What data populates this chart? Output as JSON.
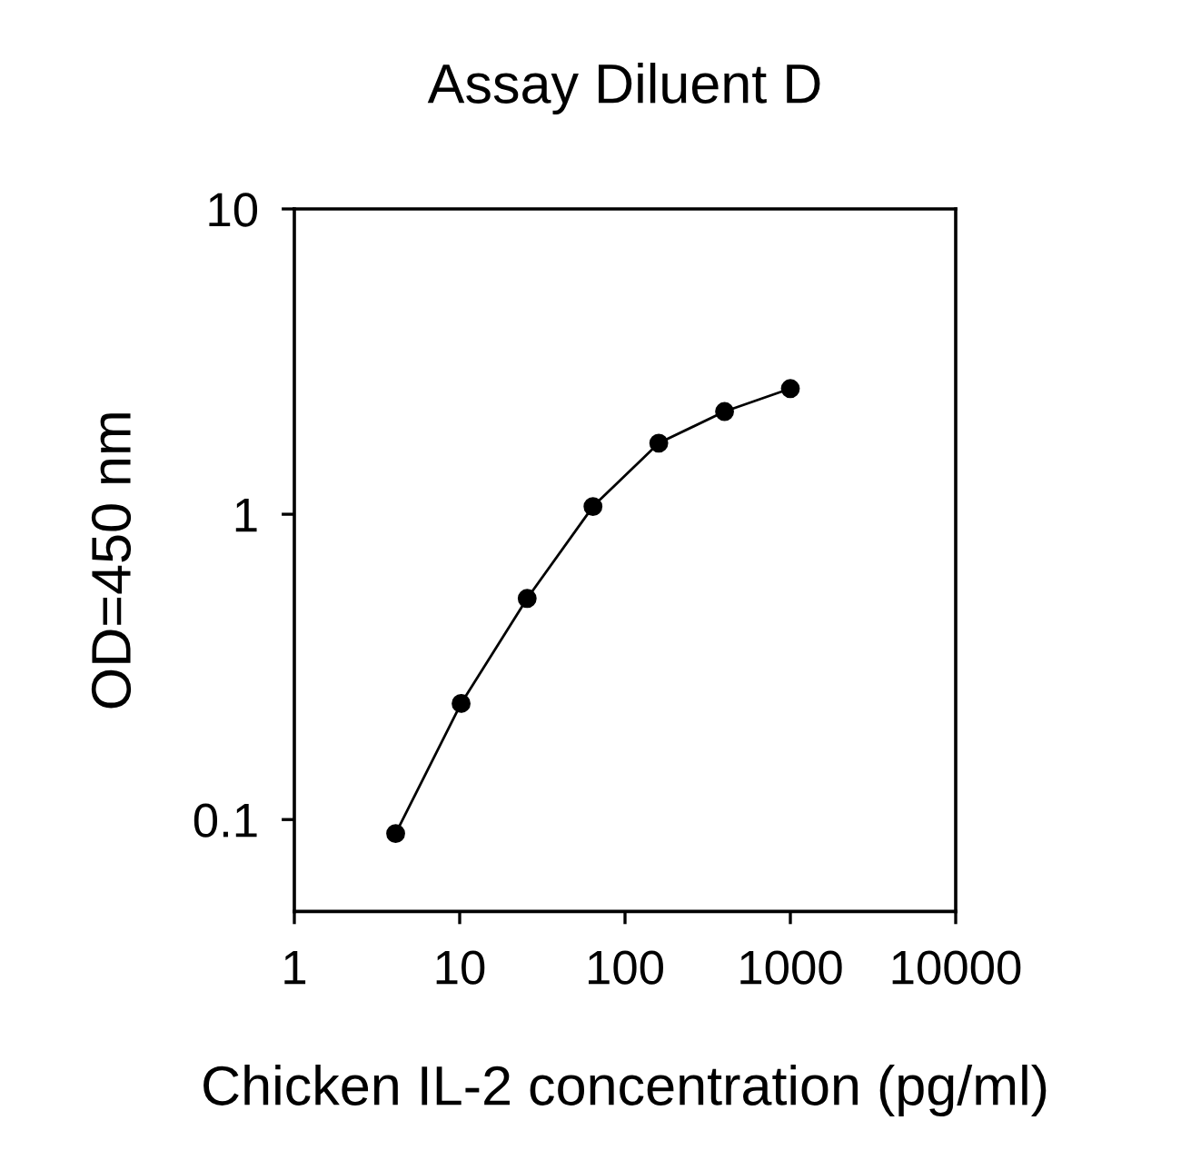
{
  "chart_data": {
    "type": "line",
    "title": "Assay Diluent D",
    "xlabel": "Chicken IL-2 concentration (pg/ml)",
    "ylabel": "OD=450 nm",
    "x": [
      4.1,
      10.2,
      25.6,
      64,
      160,
      400,
      1000
    ],
    "values": [
      0.09,
      0.24,
      0.53,
      1.06,
      1.71,
      2.17,
      2.58
    ],
    "color": "#000000",
    "xlim": [
      1,
      10000
    ],
    "xticks": [
      1,
      10,
      100,
      1000,
      10000
    ],
    "ylim": [
      0.05,
      10
    ],
    "yticks": [
      0.1,
      1,
      10
    ],
    "log": "xy",
    "grid": false,
    "legend": false,
    "marker": "circle",
    "line_style": "solid"
  }
}
